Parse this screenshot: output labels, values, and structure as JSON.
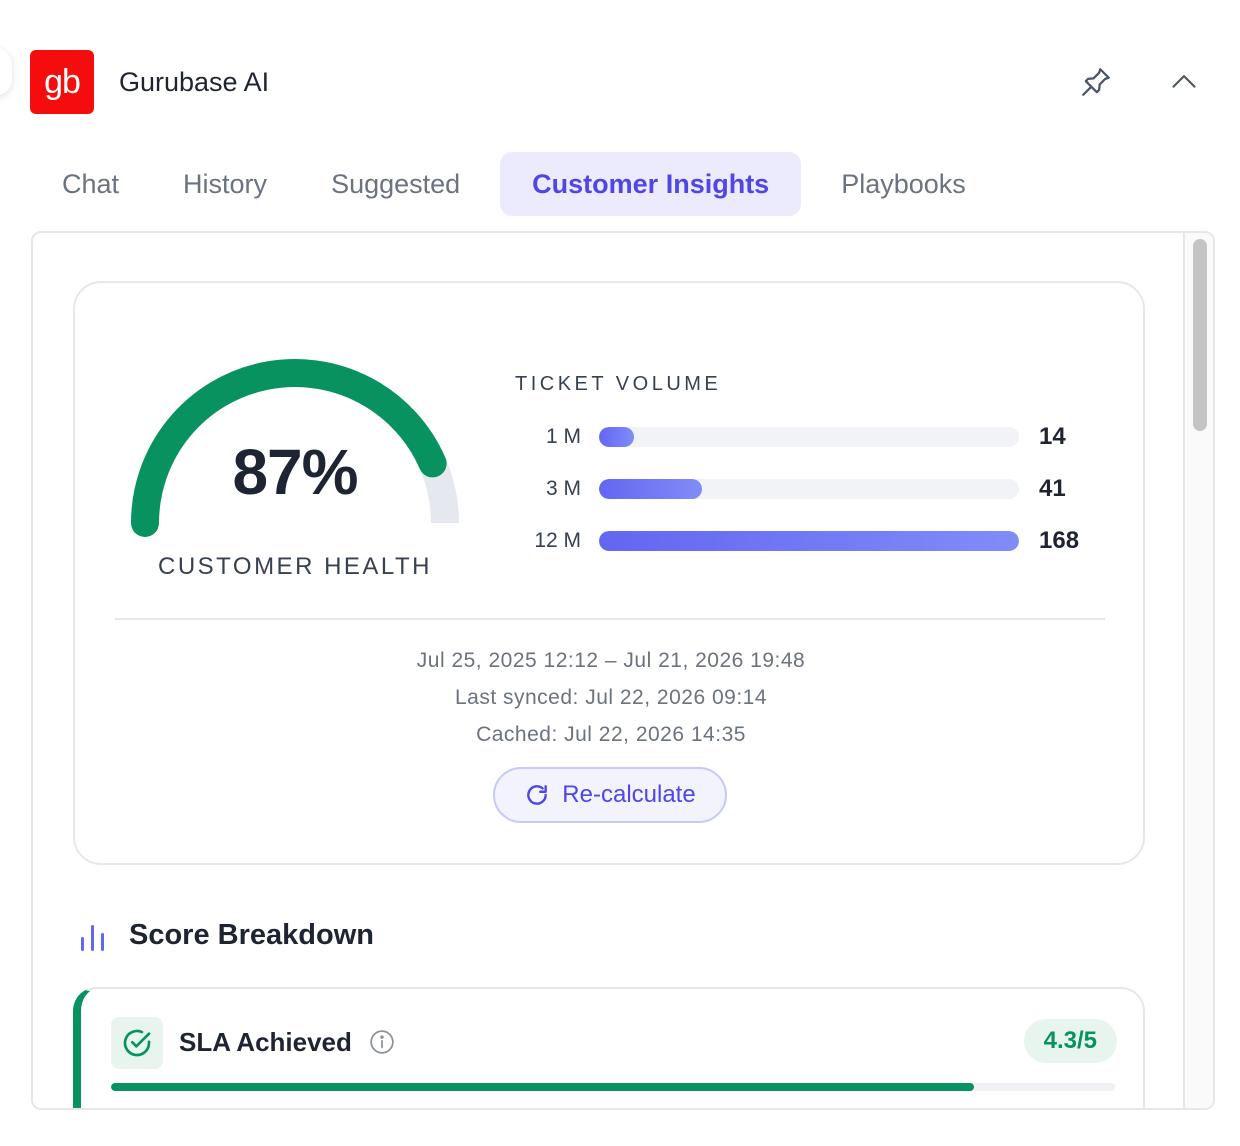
{
  "app": {
    "logo_text": "gb",
    "title": "Gurubase AI",
    "brand_color": "#f50d0d",
    "pin_icon": "pin-icon",
    "collapse_icon": "chevron-up-icon"
  },
  "tabs": [
    {
      "label": "Chat",
      "active": false
    },
    {
      "label": "History",
      "active": false
    },
    {
      "label": "Suggested",
      "active": false
    },
    {
      "label": "Customer Insights",
      "active": true
    },
    {
      "label": "Playbooks",
      "active": false
    }
  ],
  "health": {
    "value_text": "87%",
    "value": 87,
    "label": "CUSTOMER HEALTH",
    "color": "#07925f"
  },
  "ticket_volume": {
    "title": "TICKET VOLUME",
    "rows": [
      {
        "label": "1 M",
        "value": 14
      },
      {
        "label": "3 M",
        "value": 41
      },
      {
        "label": "12 M",
        "value": 168
      }
    ],
    "max": 168,
    "accent": "#6366f1"
  },
  "meta": {
    "range": "Jul 25, 2025 12:12 – Jul 21, 2026 19:48",
    "last_synced": "Last synced: Jul 22, 2026 09:14",
    "cached": "Cached: Jul 22, 2026 14:35"
  },
  "recalculate": {
    "label": "Re-calculate",
    "icon": "refresh-icon"
  },
  "score_breakdown": {
    "title": "Score Breakdown",
    "icon": "bar-chart-icon",
    "items": [
      {
        "title": "SLA Achieved",
        "score_text": "4.3/5",
        "score": 4.3,
        "max": 5,
        "color": "#07925f",
        "icon": "check-circle-icon",
        "info_icon": "info-icon"
      }
    ]
  }
}
